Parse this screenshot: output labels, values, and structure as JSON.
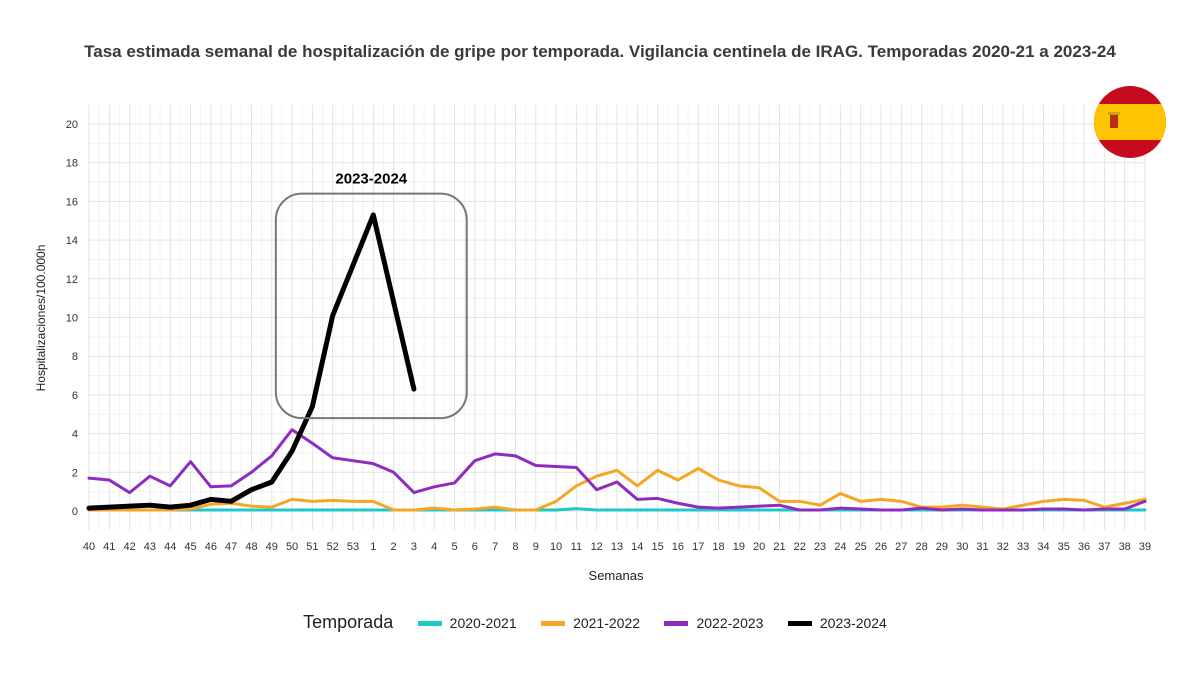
{
  "chart_data": {
    "type": "line",
    "title": "Tasa estimada semanal de hospitalización de gripe por temporada. Vigilancia centinela de IRAG. Temporadas 2020-21 a 2023-24",
    "xlabel": "Semanas",
    "ylabel": "Hospitalizaciones/100.000h",
    "ylim": [
      0,
      20
    ],
    "y_ticks": [
      0,
      2,
      4,
      6,
      8,
      10,
      12,
      14,
      16,
      18,
      20
    ],
    "categories": [
      "40",
      "41",
      "42",
      "43",
      "44",
      "45",
      "46",
      "47",
      "48",
      "49",
      "50",
      "51",
      "52",
      "53",
      "1",
      "2",
      "3",
      "4",
      "5",
      "6",
      "7",
      "8",
      "9",
      "10",
      "11",
      "12",
      "13",
      "14",
      "15",
      "16",
      "17",
      "18",
      "19",
      "20",
      "21",
      "22",
      "23",
      "24",
      "25",
      "26",
      "27",
      "28",
      "29",
      "30",
      "31",
      "32",
      "33",
      "34",
      "35",
      "36",
      "37",
      "38",
      "39"
    ],
    "grid": true,
    "legend_title": "Temporada",
    "legend_position": "bottom",
    "annotation": {
      "label": "2023-2024",
      "x_range": [
        "50",
        "3"
      ],
      "y_range": [
        4.8,
        16.4
      ]
    },
    "series": [
      {
        "name": "2020-2021",
        "color": "#1ec8c8",
        "values": [
          0.05,
          0.05,
          0.05,
          0.05,
          0.05,
          0.05,
          0.05,
          0.05,
          0.05,
          0.05,
          0.05,
          0.05,
          0.05,
          0.05,
          0.05,
          0.05,
          0.05,
          0.05,
          0.05,
          0.05,
          0.05,
          0.05,
          0.05,
          0.05,
          0.12,
          0.05,
          0.05,
          0.05,
          0.05,
          0.05,
          0.05,
          0.05,
          0.05,
          0.05,
          0.05,
          0.05,
          0.05,
          0.05,
          0.05,
          0.05,
          0.05,
          0.05,
          0.05,
          0.05,
          0.05,
          0.05,
          0.05,
          0.05,
          0.05,
          0.05,
          0.05,
          0.05,
          0.05
        ]
      },
      {
        "name": "2021-2022",
        "color": "#f5a623",
        "values": [
          0.05,
          0.05,
          0.05,
          0.05,
          0.05,
          0.1,
          0.35,
          0.4,
          0.25,
          0.2,
          0.6,
          0.5,
          0.55,
          0.5,
          0.5,
          0.05,
          0.05,
          0.15,
          0.05,
          0.1,
          0.2,
          0.05,
          0.05,
          0.5,
          1.3,
          1.8,
          2.1,
          1.3,
          2.1,
          1.6,
          2.2,
          1.6,
          1.3,
          1.2,
          0.5,
          0.5,
          0.3,
          0.9,
          0.5,
          0.6,
          0.5,
          0.2,
          0.2,
          0.3,
          0.2,
          0.1,
          0.3,
          0.5,
          0.6,
          0.55,
          0.2,
          0.4,
          0.6
        ]
      },
      {
        "name": "2022-2023",
        "color": "#8e2cc1",
        "values": [
          1.7,
          1.6,
          0.95,
          1.8,
          1.3,
          2.55,
          1.25,
          1.3,
          2.0,
          2.85,
          4.2,
          3.5,
          2.75,
          2.6,
          2.45,
          2.0,
          0.95,
          1.25,
          1.45,
          2.6,
          2.95,
          2.85,
          2.35,
          2.3,
          2.25,
          1.1,
          1.5,
          0.6,
          0.65,
          0.4,
          0.2,
          0.15,
          0.2,
          0.25,
          0.3,
          0.05,
          0.05,
          0.15,
          0.1,
          0.05,
          0.05,
          0.15,
          0.05,
          0.1,
          0.05,
          0.05,
          0.05,
          0.1,
          0.1,
          0.05,
          0.1,
          0.1,
          0.5
        ]
      },
      {
        "name": "2023-2024",
        "color": "#000000",
        "values": [
          0.15,
          0.2,
          0.25,
          0.3,
          0.2,
          0.3,
          0.6,
          0.5,
          1.1,
          1.5,
          3.1,
          5.4,
          10.1,
          12.7,
          15.3,
          10.8,
          6.3,
          null,
          null,
          null,
          null,
          null,
          null,
          null,
          null,
          null,
          null,
          null,
          null,
          null,
          null,
          null,
          null,
          null,
          null,
          null,
          null,
          null,
          null,
          null,
          null,
          null,
          null,
          null,
          null,
          null,
          null,
          null,
          null,
          null,
          null,
          null,
          null
        ]
      }
    ]
  },
  "flag": {
    "icon": "spain-flag-icon",
    "red": "#c60b1e",
    "yellow": "#ffc400"
  }
}
